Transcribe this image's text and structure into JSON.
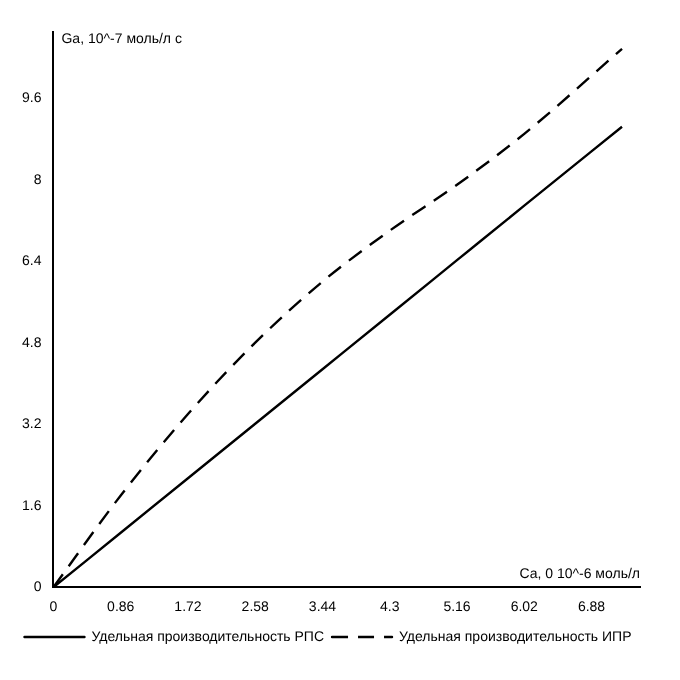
{
  "chart_data": {
    "type": "line",
    "xlabel": "Ca, 0 10^-6 моль/л",
    "ylabel": "Ga, 10^-7 моль/л с",
    "x": [
      0,
      0.86,
      1.72,
      2.58,
      3.44,
      4.3,
      5.16,
      6.02,
      7.27
    ],
    "series": [
      {
        "name": "Удельная производительность РПС",
        "color": "#000000",
        "line_style": "solid",
        "values": [
          0,
          1.07,
          2.14,
          3.21,
          4.28,
          5.35,
          6.42,
          7.49,
          9.04
        ]
      },
      {
        "name": "Удельная производительность ИПР",
        "color": "#000000",
        "line_style": "dashed",
        "values": [
          0,
          1.8,
          3.4,
          4.8,
          6.0,
          7.0,
          7.9,
          8.9,
          10.57
        ]
      }
    ],
    "xlim": [
      0,
      7.5
    ],
    "ylim": [
      0,
      10.9
    ],
    "xticks": [
      0,
      0.86,
      1.72,
      2.58,
      3.44,
      4.3,
      5.16,
      6.02,
      6.88
    ],
    "yticks": [
      0,
      1.6,
      3.2,
      4.8,
      6.4,
      8,
      9.6
    ],
    "grid": false,
    "legend": "bottom",
    "marker": "none"
  }
}
